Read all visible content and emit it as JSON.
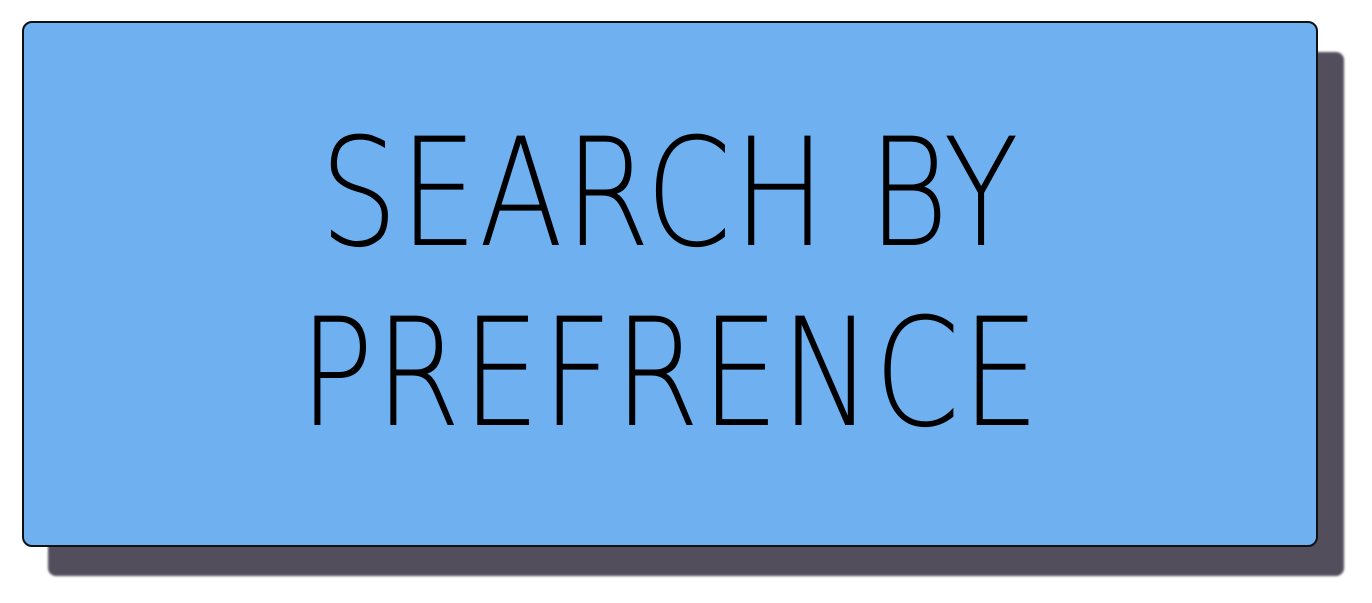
{
  "button": {
    "label_lines": [
      "SEARCH BY",
      "PREFRENCE"
    ]
  }
}
